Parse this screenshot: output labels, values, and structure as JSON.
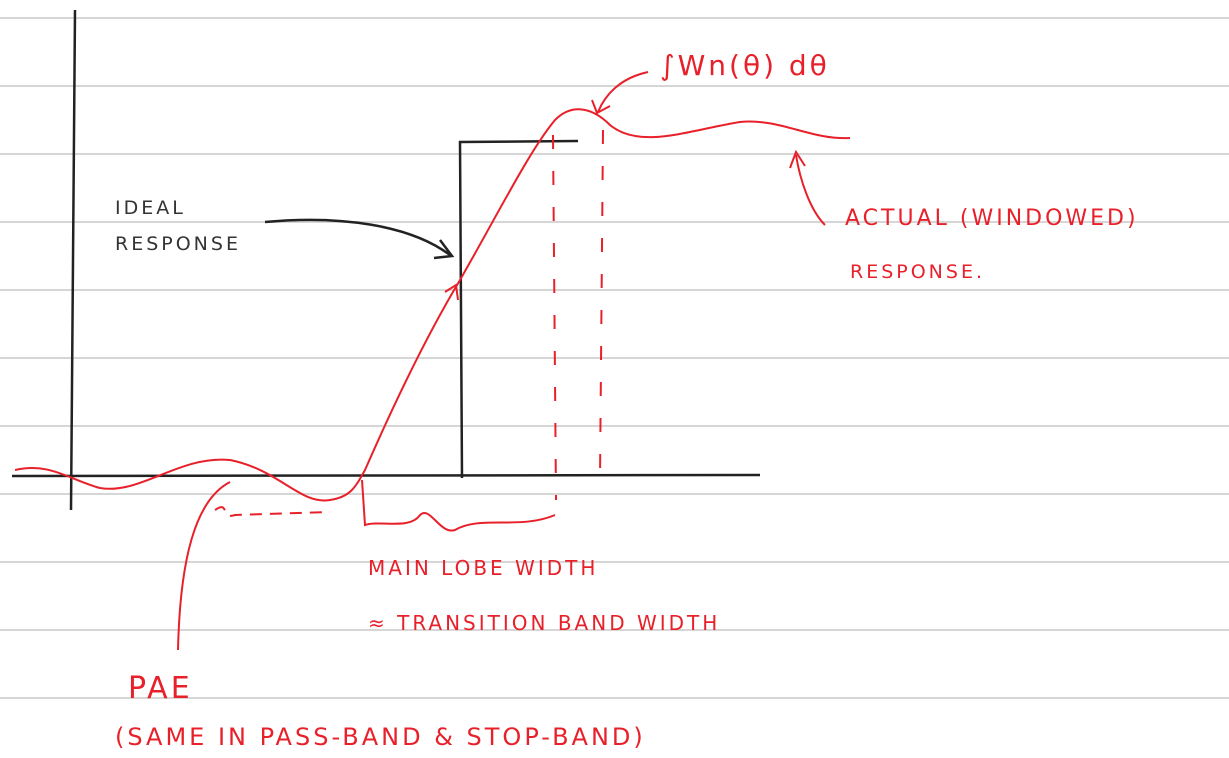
{
  "annotations": {
    "integral": "∫Wn(θ) dθ",
    "ideal": [
      "IDEAL",
      "RESPONSE"
    ],
    "actual": [
      "ACTUAL (WINDOWED)",
      "RESPONSE."
    ],
    "main_lobe": "MAIN LOBE WIDTH",
    "transition": "≈ TRANSITION BAND WIDTH",
    "pae": "PAE",
    "pae_note": "(SAME IN PASS-BAND & STOP-BAND)"
  }
}
